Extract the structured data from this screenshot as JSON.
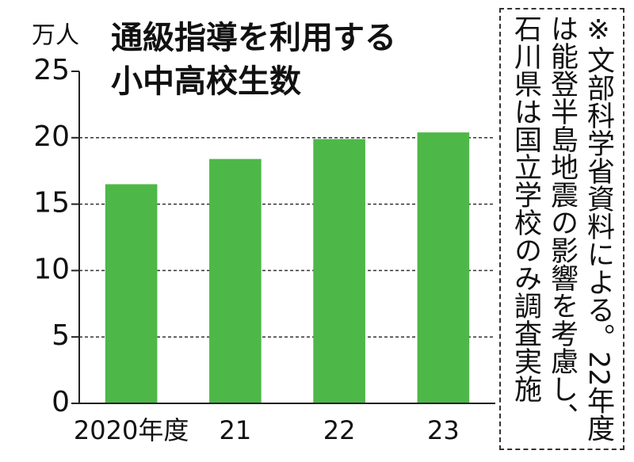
{
  "chart_data": {
    "type": "bar",
    "title": [
      "通級指導を利用する",
      "小中高校生数"
    ],
    "y_unit": "万人",
    "categories": [
      "2020年度",
      "21",
      "22",
      "23"
    ],
    "values": [
      16.5,
      18.4,
      19.9,
      20.4
    ],
    "color": "#4db848",
    "ylim": [
      0,
      25
    ],
    "yticks": [
      0,
      5,
      10,
      15,
      20,
      25
    ],
    "grid": true,
    "note": [
      "※文部科学省資料による。22年度",
      "は能登半島地震の影響を考慮し、",
      "石川県は国立学校のみ調査実施"
    ]
  }
}
